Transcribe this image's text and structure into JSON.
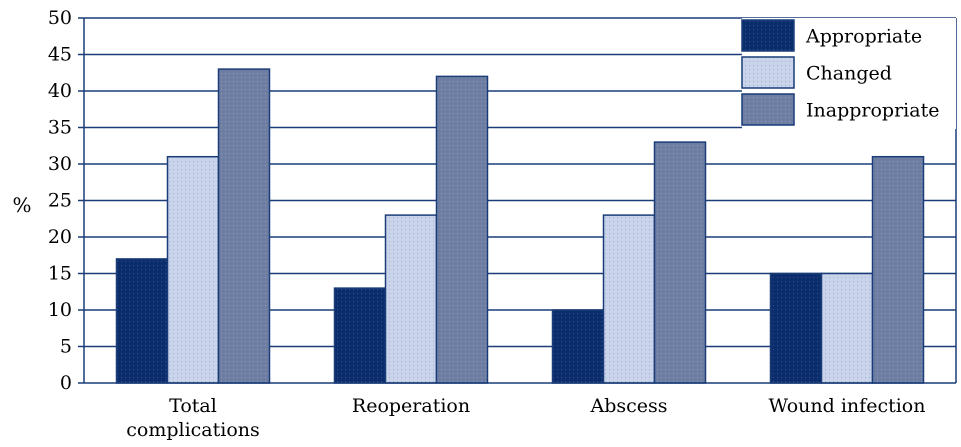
{
  "chart_data": {
    "type": "bar",
    "categories": [
      "Total complications",
      "Reoperation",
      "Abscess",
      "Wound infection"
    ],
    "category_lines": [
      [
        "Total",
        "complications"
      ],
      [
        "Reoperation"
      ],
      [
        "Abscess"
      ],
      [
        "Wound infection"
      ]
    ],
    "series": [
      {
        "name": "Appropriate",
        "values": [
          17,
          13,
          10,
          15
        ],
        "color": "#0c2d6b"
      },
      {
        "name": "Changed",
        "values": [
          31,
          23,
          23,
          15
        ],
        "color": "#c9d3ea"
      },
      {
        "name": "Inappropriate",
        "values": [
          43,
          42,
          33,
          31
        ],
        "color": "#6e7ea3"
      }
    ],
    "ylabel": "%",
    "ylim": [
      0,
      50
    ],
    "yticks": [
      0,
      5,
      10,
      15,
      20,
      25,
      30,
      35,
      40,
      45,
      50
    ],
    "grid": true,
    "legend_position": "top-right"
  }
}
